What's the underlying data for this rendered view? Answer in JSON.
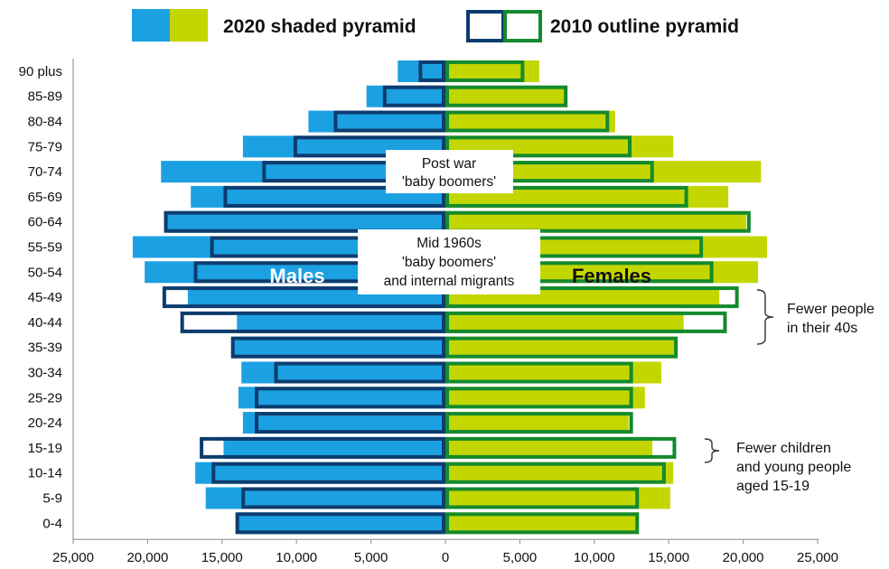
{
  "chart_data": {
    "type": "population-pyramid",
    "categories": [
      "0-4",
      "5-9",
      "10-14",
      "15-19",
      "20-24",
      "25-29",
      "30-34",
      "35-39",
      "40-44",
      "45-49",
      "50-54",
      "55-59",
      "60-64",
      "65-69",
      "70-74",
      "75-79",
      "80-84",
      "85-89",
      "90 plus"
    ],
    "series": [
      {
        "name": "2020 shaded pyramid",
        "sex": "Males",
        "style": "shaded",
        "values": [
          13900,
          16100,
          16800,
          14900,
          13600,
          13900,
          13700,
          14300,
          14000,
          17300,
          20200,
          21000,
          18700,
          17100,
          19100,
          13600,
          9200,
          5300,
          3200
        ]
      },
      {
        "name": "2020 shaded pyramid",
        "sex": "Females",
        "style": "shaded",
        "values": [
          13000,
          15100,
          15300,
          13900,
          12300,
          13400,
          14500,
          15600,
          16000,
          18400,
          21000,
          21600,
          20200,
          19000,
          21200,
          15300,
          11400,
          8200,
          6300
        ]
      },
      {
        "name": "2010 outline pyramid",
        "sex": "Males",
        "style": "outline",
        "values": [
          14100,
          13700,
          15700,
          16500,
          12800,
          12800,
          11500,
          14400,
          17800,
          19000,
          16900,
          15800,
          18900,
          14900,
          12300,
          10200,
          7500,
          4200,
          1800
        ]
      },
      {
        "name": "2010 outline pyramid",
        "sex": "Females",
        "style": "outline",
        "values": [
          13000,
          13000,
          14800,
          15500,
          12600,
          12600,
          12600,
          15600,
          18900,
          19700,
          18000,
          17300,
          20500,
          16300,
          14000,
          12500,
          11000,
          8200,
          5300
        ]
      }
    ],
    "x_ticks": [
      "25,000",
      "20,000",
      "15,000",
      "10,000",
      "5,000",
      "0",
      "5,000",
      "10,000",
      "15,000",
      "20,000",
      "25,000"
    ],
    "xlim": [
      -25000,
      25000
    ],
    "grid": false,
    "legend_position": "top",
    "colors": {
      "male_fill": "#1BA1E2",
      "female_fill": "#C4D600",
      "male_outline": "#0D3C6E",
      "female_outline": "#138A2E"
    }
  },
  "legend": {
    "shaded_label": "2020 shaded pyramid",
    "outline_label": "2010 outline pyramid"
  },
  "annotations": {
    "males_label": "Males",
    "females_label": "Females",
    "post_war": [
      "Post war",
      "'baby boomers'"
    ],
    "mid_1960s": [
      "Mid 1960s",
      "'baby boomers'",
      "and internal migrants"
    ],
    "fewer_40s": [
      "Fewer people",
      "in their 40s"
    ],
    "fewer_children": [
      "Fewer children",
      "and young people",
      "aged 15-19"
    ]
  }
}
